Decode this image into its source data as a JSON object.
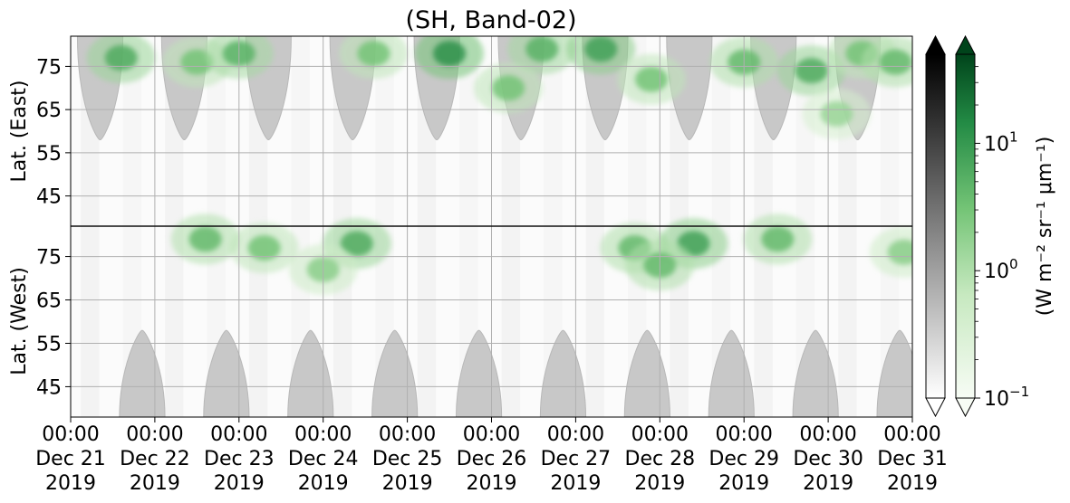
{
  "chart_data": {
    "type": "heatmap",
    "title": "(SH, Band-02)",
    "x_axis": {
      "tick_labels": [
        [
          "00:00",
          "Dec 21",
          "2019"
        ],
        [
          "00:00",
          "Dec 22",
          "2019"
        ],
        [
          "00:00",
          "Dec 23",
          "2019"
        ],
        [
          "00:00",
          "Dec 24",
          "2019"
        ],
        [
          "00:00",
          "Dec 25",
          "2019"
        ],
        [
          "00:00",
          "Dec 26",
          "2019"
        ],
        [
          "00:00",
          "Dec 27",
          "2019"
        ],
        [
          "00:00",
          "Dec 28",
          "2019"
        ],
        [
          "00:00",
          "Dec 29",
          "2019"
        ],
        [
          "00:00",
          "Dec 30",
          "2019"
        ],
        [
          "00:00",
          "Dec 31",
          "2019"
        ]
      ],
      "range": [
        "2019-12-21 00:00",
        "2019-12-31 00:00"
      ]
    },
    "y_axis_top": {
      "label": "Lat. (East)",
      "ticks": [
        "45",
        "55",
        "65",
        "75"
      ],
      "range": [
        38,
        82
      ]
    },
    "y_axis_bottom": {
      "label": "Lat. (West)",
      "ticks": [
        "75",
        "65",
        "55",
        "45"
      ],
      "range": [
        82,
        38
      ]
    },
    "divider_latitude": 82,
    "grid": true,
    "colorbars": [
      {
        "name": "gray",
        "colormap": [
          "#ffffff",
          "#000000"
        ],
        "extend": "both"
      },
      {
        "name": "green",
        "colormap": [
          "#f7fcf5",
          "#00441b"
        ],
        "extend": "both",
        "scale": "log",
        "ticks": [
          "10^-1",
          "10^0",
          "10^1"
        ]
      }
    ],
    "colorbar_label": "(W m⁻² sr⁻¹ μm⁻¹)",
    "intensity_peaks": [
      {
        "day": 0.6,
        "hemisphere": "East",
        "lat": 77,
        "value": 6
      },
      {
        "day": 1.5,
        "hemisphere": "East",
        "lat": 76,
        "value": 3
      },
      {
        "day": 1.6,
        "hemisphere": "West",
        "lat": 79,
        "value": 4
      },
      {
        "day": 2.0,
        "hemisphere": "East",
        "lat": 78,
        "value": 5
      },
      {
        "day": 2.3,
        "hemisphere": "West",
        "lat": 77,
        "value": 3
      },
      {
        "day": 3.4,
        "hemisphere": "West",
        "lat": 78,
        "value": 6
      },
      {
        "day": 3.6,
        "hemisphere": "East",
        "lat": 78,
        "value": 3
      },
      {
        "day": 3.0,
        "hemisphere": "West",
        "lat": 72,
        "value": 2
      },
      {
        "day": 4.5,
        "hemisphere": "East",
        "lat": 78,
        "value": 12
      },
      {
        "day": 5.6,
        "hemisphere": "East",
        "lat": 79,
        "value": 5
      },
      {
        "day": 5.2,
        "hemisphere": "East",
        "lat": 70,
        "value": 3
      },
      {
        "day": 6.3,
        "hemisphere": "East",
        "lat": 79,
        "value": 8
      },
      {
        "day": 6.7,
        "hemisphere": "West",
        "lat": 77,
        "value": 4
      },
      {
        "day": 6.9,
        "hemisphere": "East",
        "lat": 72,
        "value": 3
      },
      {
        "day": 7.4,
        "hemisphere": "West",
        "lat": 78,
        "value": 8
      },
      {
        "day": 7.0,
        "hemisphere": "West",
        "lat": 73,
        "value": 4
      },
      {
        "day": 8.0,
        "hemisphere": "East",
        "lat": 76,
        "value": 4
      },
      {
        "day": 8.4,
        "hemisphere": "West",
        "lat": 79,
        "value": 4
      },
      {
        "day": 8.8,
        "hemisphere": "East",
        "lat": 74,
        "value": 6
      },
      {
        "day": 9.4,
        "hemisphere": "East",
        "lat": 78,
        "value": 3
      },
      {
        "day": 9.1,
        "hemisphere": "East",
        "lat": 64,
        "value": 1.5
      },
      {
        "day": 9.8,
        "hemisphere": "East",
        "lat": 76,
        "value": 4
      },
      {
        "day": 9.9,
        "hemisphere": "West",
        "lat": 76,
        "value": 2
      }
    ],
    "gray_masks": [
      {
        "hemisphere": "East",
        "center_day": 0.35,
        "lat_edge": 58
      },
      {
        "hemisphere": "East",
        "center_day": 1.35,
        "lat_edge": 58
      },
      {
        "hemisphere": "East",
        "center_day": 2.35,
        "lat_edge": 58
      },
      {
        "hemisphere": "East",
        "center_day": 3.35,
        "lat_edge": 58
      },
      {
        "hemisphere": "East",
        "center_day": 4.35,
        "lat_edge": 58
      },
      {
        "hemisphere": "East",
        "center_day": 5.35,
        "lat_edge": 58
      },
      {
        "hemisphere": "East",
        "center_day": 6.35,
        "lat_edge": 58
      },
      {
        "hemisphere": "East",
        "center_day": 7.35,
        "lat_edge": 58
      },
      {
        "hemisphere": "East",
        "center_day": 8.35,
        "lat_edge": 58
      },
      {
        "hemisphere": "East",
        "center_day": 9.35,
        "lat_edge": 58
      },
      {
        "hemisphere": "West",
        "center_day": 0.85,
        "lat_edge": 58
      },
      {
        "hemisphere": "West",
        "center_day": 1.85,
        "lat_edge": 58
      },
      {
        "hemisphere": "West",
        "center_day": 2.85,
        "lat_edge": 58
      },
      {
        "hemisphere": "West",
        "center_day": 3.85,
        "lat_edge": 58
      },
      {
        "hemisphere": "West",
        "center_day": 4.85,
        "lat_edge": 58
      },
      {
        "hemisphere": "West",
        "center_day": 5.85,
        "lat_edge": 58
      },
      {
        "hemisphere": "West",
        "center_day": 6.85,
        "lat_edge": 58
      },
      {
        "hemisphere": "West",
        "center_day": 7.85,
        "lat_edge": 58
      },
      {
        "hemisphere": "West",
        "center_day": 8.85,
        "lat_edge": 58
      },
      {
        "hemisphere": "West",
        "center_day": 9.85,
        "lat_edge": 58
      }
    ]
  }
}
